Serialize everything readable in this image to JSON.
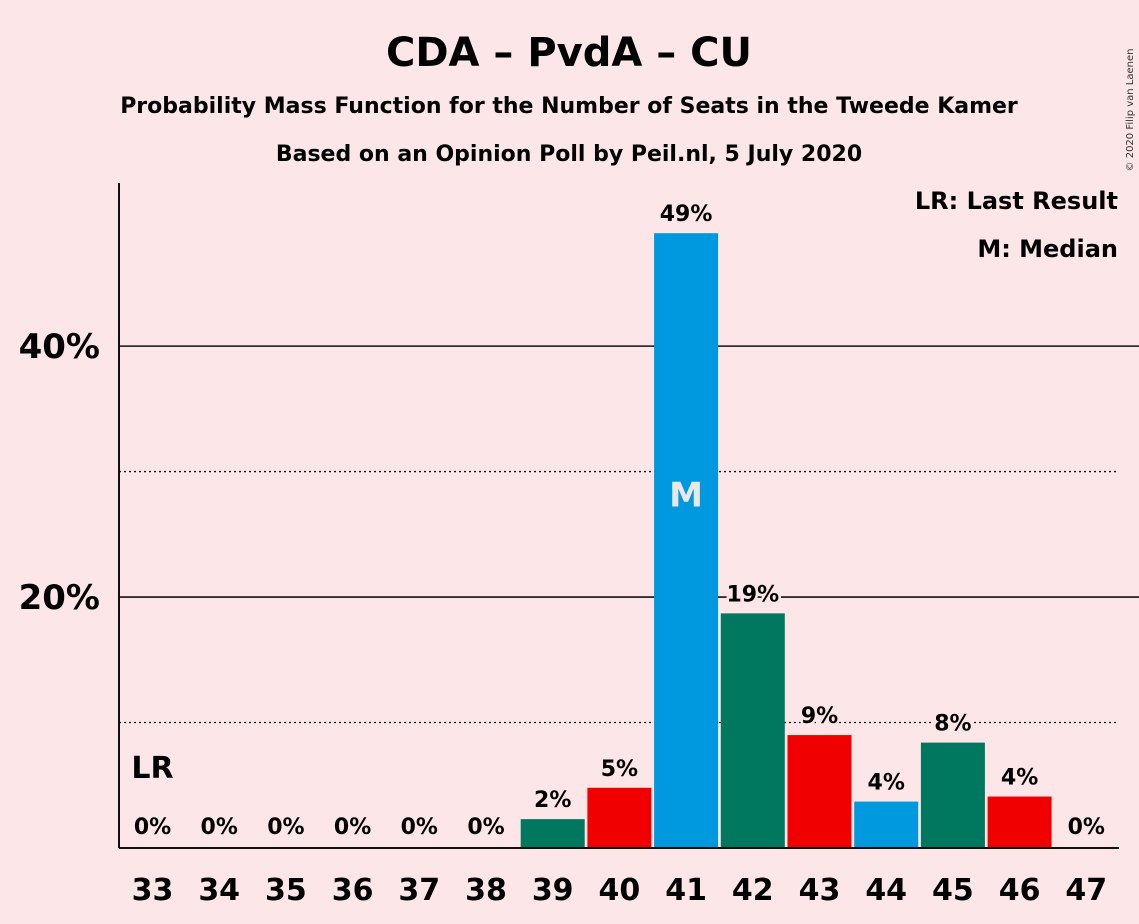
{
  "chart_data": {
    "type": "bar",
    "title": "CDA – PvdA – CU",
    "subtitle_line1": "Probability Mass Function for the Number of Seats in the Tweede Kamer",
    "subtitle_line2": "Based on an Opinion Poll by Peil.nl, 5 July 2020",
    "copyright": "© 2020 Filip van Laenen",
    "categories": [
      "33",
      "34",
      "35",
      "36",
      "37",
      "38",
      "39",
      "40",
      "41",
      "42",
      "43",
      "44",
      "45",
      "46",
      "47"
    ],
    "values": [
      0,
      0,
      0,
      0,
      0,
      0,
      2.3,
      4.8,
      49,
      18.7,
      9.0,
      3.7,
      8.4,
      4.1,
      0
    ],
    "value_labels": [
      "0%",
      "0%",
      "0%",
      "0%",
      "0%",
      "0%",
      "2%",
      "5%",
      "49%",
      "19%",
      "9%",
      "4%",
      "8%",
      "4%",
      "0%"
    ],
    "bar_colors": [
      "#00785f",
      "#f10000",
      "#0099e0",
      "#00785f",
      "#f10000",
      "#0099e0",
      "#00785f",
      "#f10000",
      "#0099e0",
      "#00785f",
      "#f10000",
      "#0099e0",
      "#00785f",
      "#f10000",
      "#0099e0"
    ],
    "ylim": [
      0,
      53
    ],
    "yticks": [
      20,
      40
    ],
    "ytick_labels": [
      "20%",
      "40%"
    ],
    "minor_gridlines": [
      10,
      30
    ],
    "last_result_label": "LR",
    "last_result_category": "33",
    "median_label": "M",
    "median_category": "41",
    "legend": [
      "LR: Last Result",
      "M: Median"
    ],
    "legend_position": "top-right"
  }
}
